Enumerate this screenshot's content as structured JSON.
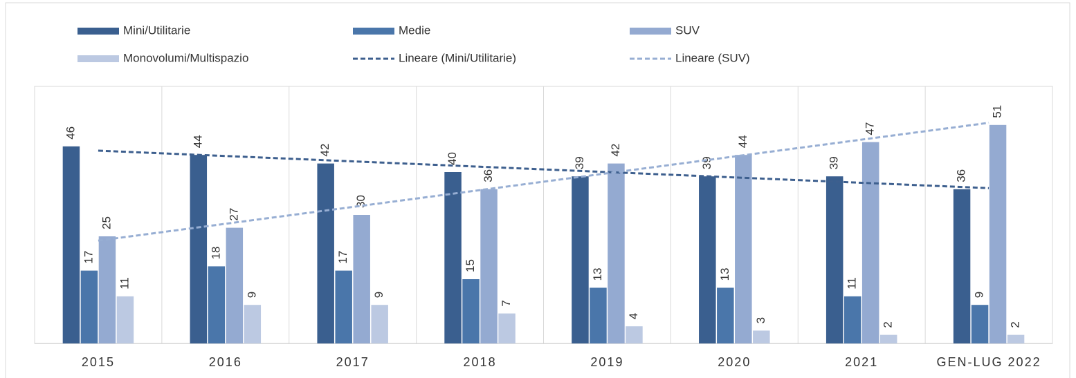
{
  "chart_data": {
    "type": "bar",
    "categories": [
      "2015",
      "2016",
      "2017",
      "2018",
      "2019",
      "2020",
      "2021",
      "GEN-LUG 2022"
    ],
    "series": [
      {
        "name": "Mini/Utilitarie",
        "color": "#3a5f8f",
        "values": [
          46,
          44,
          42,
          40,
          39,
          39,
          39,
          36
        ]
      },
      {
        "name": "Medie",
        "color": "#4a76aa",
        "values": [
          17,
          18,
          17,
          15,
          13,
          13,
          11,
          9
        ]
      },
      {
        "name": "SUV",
        "color": "#94aad1",
        "values": [
          25,
          27,
          30,
          36,
          42,
          44,
          47,
          51
        ]
      },
      {
        "name": "Monovolumi/Multispazio",
        "color": "#bcc9e2",
        "values": [
          11,
          9,
          9,
          7,
          4,
          3,
          2,
          2
        ]
      }
    ],
    "trendlines": [
      {
        "name": "Lineare (Mini/Utilitarie)",
        "series": 0,
        "color": "#3d5f8e"
      },
      {
        "name": "Lineare (SUV)",
        "series": 2,
        "color": "#97aed3"
      }
    ],
    "ylim": [
      0,
      60
    ],
    "legend": "top",
    "grid": true
  }
}
